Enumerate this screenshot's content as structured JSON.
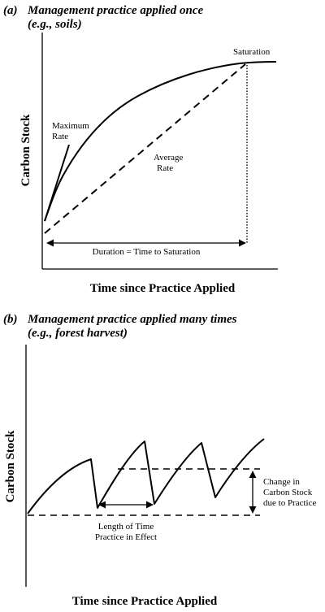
{
  "panel_a": {
    "label": "(a)",
    "title_line1": "Management practice applied once",
    "title_line2": "(e.g., soils)",
    "ylabel": "Carbon Stock",
    "xlabel": "Time since Practice Applied",
    "annotations": {
      "saturation": "Saturation",
      "max_rate_line1": "Maximum",
      "max_rate_line2": "Rate",
      "avg_rate_line1": "Average",
      "avg_rate_line2": "Rate",
      "duration": "Duration = Time to Saturation"
    }
  },
  "panel_b": {
    "label": "(b)",
    "title_line1": "Management practice applied many times",
    "title_line2": "(e.g., forest harvest)",
    "ylabel": "Carbon Stock",
    "xlabel": "Time since Practice Applied",
    "annotations": {
      "length_line1": "Length of Time",
      "length_line2": "Practice in Effect",
      "change_line1": "Change in",
      "change_line2": "Carbon Stock",
      "change_line3": "due to Practice"
    }
  }
}
